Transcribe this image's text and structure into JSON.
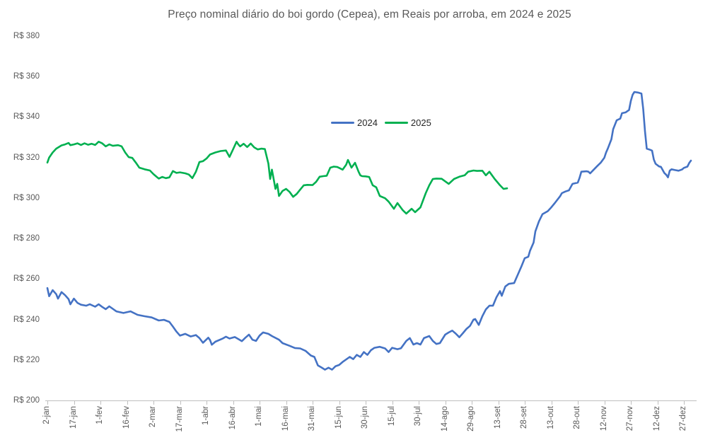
{
  "chart_data": {
    "type": "line",
    "title": "Preço nominal diário do boi gordo (Cepea), em Reais por arroba, em 2024 e 2025",
    "currency_prefix": "R$",
    "y_axis": {
      "min": 200,
      "max": 380,
      "step": 20,
      "labels": [
        "R$ 380",
        "R$ 360",
        "R$ 340",
        "R$ 320",
        "R$ 300",
        "R$ 280",
        "R$ 260",
        "R$ 240",
        "R$ 220",
        "R$ 200"
      ],
      "label_values": [
        380,
        360,
        340,
        320,
        300,
        280,
        260,
        240,
        220,
        200
      ]
    },
    "x_axis": {
      "tick_labels": [
        "2-jan",
        "17-jan",
        "1-fev",
        "16-fev",
        "2-mar",
        "17-mar",
        "1-abr",
        "16-abr",
        "1-mai",
        "16-mai",
        "31-mai",
        "15-jun",
        "30-jun",
        "15-jul",
        "30-jul",
        "14-ago",
        "29-ago",
        "13-set",
        "28-set",
        "13-out",
        "28-out",
        "12-nov",
        "27-nov",
        "12-dez",
        "27-dez"
      ],
      "tick_day_interval": 15,
      "unit": "day of year (from 2-jan)"
    },
    "grid": "off",
    "legend_position": "center-upper",
    "series": [
      {
        "name": "2024",
        "color": "#4472C4",
        "points": [
          [
            0,
            255.5
          ],
          [
            1,
            251.5
          ],
          [
            3,
            254.5
          ],
          [
            5,
            252.5
          ],
          [
            6,
            250.3
          ],
          [
            8,
            253.5
          ],
          [
            10,
            252
          ],
          [
            12,
            250
          ],
          [
            13,
            247.5
          ],
          [
            15,
            250.3
          ],
          [
            17,
            248.2
          ],
          [
            19,
            247.3
          ],
          [
            22,
            246.8
          ],
          [
            24,
            247.5
          ],
          [
            27,
            246.3
          ],
          [
            29,
            247.5
          ],
          [
            31,
            246.2
          ],
          [
            33,
            245.1
          ],
          [
            35,
            246.5
          ],
          [
            39,
            244
          ],
          [
            43,
            243.2
          ],
          [
            47,
            244
          ],
          [
            51,
            242.3
          ],
          [
            55,
            241.6
          ],
          [
            59,
            241
          ],
          [
            63,
            239.5
          ],
          [
            66,
            239.8
          ],
          [
            69,
            238.8
          ],
          [
            71,
            236.5
          ],
          [
            73,
            234
          ],
          [
            75,
            232
          ],
          [
            78,
            232.9
          ],
          [
            81,
            231.6
          ],
          [
            84,
            232.3
          ],
          [
            86,
            230.8
          ],
          [
            88,
            228.5
          ],
          [
            91,
            231
          ],
          [
            92,
            229.8
          ],
          [
            93,
            227.5
          ],
          [
            95,
            229
          ],
          [
            99,
            230.5
          ],
          [
            101,
            231.5
          ],
          [
            103,
            230.6
          ],
          [
            106,
            231.3
          ],
          [
            108,
            230.3
          ],
          [
            110,
            229.3
          ],
          [
            112,
            231
          ],
          [
            114,
            232.5
          ],
          [
            116,
            230
          ],
          [
            118,
            229.4
          ],
          [
            120,
            232
          ],
          [
            122,
            233.6
          ],
          [
            125,
            232.9
          ],
          [
            127,
            231.8
          ],
          [
            131,
            230
          ],
          [
            133,
            228.3
          ],
          [
            137,
            227
          ],
          [
            140,
            225.9
          ],
          [
            143,
            225.7
          ],
          [
            146,
            224.5
          ],
          [
            149,
            222.2
          ],
          [
            151,
            221.5
          ],
          [
            153,
            217.3
          ],
          [
            155,
            216.3
          ],
          [
            157,
            215.2
          ],
          [
            159,
            216.2
          ],
          [
            161,
            215.2
          ],
          [
            163,
            216.9
          ],
          [
            165,
            217.5
          ],
          [
            167,
            219
          ],
          [
            171,
            221.5
          ],
          [
            173,
            220.4
          ],
          [
            175,
            222.5
          ],
          [
            177,
            221.5
          ],
          [
            179,
            223.9
          ],
          [
            181,
            222.5
          ],
          [
            183,
            224.8
          ],
          [
            185,
            226
          ],
          [
            188,
            226.5
          ],
          [
            191,
            225.7
          ],
          [
            193,
            223.9
          ],
          [
            195,
            226
          ],
          [
            198,
            225.3
          ],
          [
            200,
            225.8
          ],
          [
            203,
            229.4
          ],
          [
            205,
            230.8
          ],
          [
            207,
            227.6
          ],
          [
            209,
            228.3
          ],
          [
            211,
            227.6
          ],
          [
            213,
            230.8
          ],
          [
            216,
            231.8
          ],
          [
            218,
            229.4
          ],
          [
            220,
            227.9
          ],
          [
            222,
            228.3
          ],
          [
            225,
            232.5
          ],
          [
            227,
            233.6
          ],
          [
            229,
            234.5
          ],
          [
            231,
            233
          ],
          [
            233,
            231.2
          ],
          [
            235,
            233.2
          ],
          [
            237,
            235.3
          ],
          [
            239,
            236.8
          ],
          [
            241,
            239.9
          ],
          [
            242,
            240.2
          ],
          [
            244,
            237.3
          ],
          [
            246,
            241.6
          ],
          [
            248,
            245
          ],
          [
            250,
            246.8
          ],
          [
            252,
            246.8
          ],
          [
            254,
            251
          ],
          [
            256,
            254
          ],
          [
            257,
            251.7
          ],
          [
            259,
            256.3
          ],
          [
            261,
            257.6
          ],
          [
            264,
            258
          ],
          [
            265,
            260
          ],
          [
            266,
            262
          ],
          [
            268,
            266
          ],
          [
            270,
            270.3
          ],
          [
            272,
            271
          ],
          [
            273,
            274
          ],
          [
            275,
            278
          ],
          [
            276,
            283.5
          ],
          [
            278,
            288.4
          ],
          [
            280,
            292
          ],
          [
            283,
            293.5
          ],
          [
            285,
            295.4
          ],
          [
            287,
            297.5
          ],
          [
            290,
            300.9
          ],
          [
            291,
            302.4
          ],
          [
            293,
            303.2
          ],
          [
            295,
            303.8
          ],
          [
            297,
            307
          ],
          [
            300,
            307.6
          ],
          [
            301,
            310
          ],
          [
            302,
            313
          ],
          [
            305,
            313.2
          ],
          [
            306,
            313
          ],
          [
            307,
            312.2
          ],
          [
            309,
            314
          ],
          [
            311,
            315.8
          ],
          [
            313,
            317.5
          ],
          [
            315,
            319.9
          ],
          [
            316,
            322.5
          ],
          [
            317,
            324.5
          ],
          [
            319,
            329
          ],
          [
            320,
            334
          ],
          [
            322,
            338.4
          ],
          [
            324,
            339.2
          ],
          [
            325,
            341.9
          ],
          [
            327,
            342.3
          ],
          [
            329,
            343.5
          ],
          [
            330,
            348
          ],
          [
            331,
            351
          ],
          [
            332,
            352.4
          ],
          [
            334,
            352.1
          ],
          [
            336,
            351.6
          ],
          [
            337,
            344
          ],
          [
            338,
            333
          ],
          [
            339,
            324.4
          ],
          [
            341,
            323.8
          ],
          [
            342,
            323.4
          ],
          [
            343,
            319
          ],
          [
            344,
            316.9
          ],
          [
            346,
            315.6
          ],
          [
            347,
            315.4
          ],
          [
            349,
            312.3
          ],
          [
            350,
            311.5
          ],
          [
            351,
            310.2
          ],
          [
            352,
            313.5
          ],
          [
            353,
            314.2
          ],
          [
            355,
            313.8
          ],
          [
            357,
            313.5
          ],
          [
            359,
            314.1
          ],
          [
            360,
            314.9
          ],
          [
            362,
            315.5
          ],
          [
            363,
            317.3
          ],
          [
            364,
            318.5
          ]
        ]
      },
      {
        "name": "2025",
        "color": "#00B050",
        "points": [
          [
            0,
            317.5
          ],
          [
            1,
            320
          ],
          [
            3,
            322.5
          ],
          [
            5,
            324.4
          ],
          [
            8,
            326
          ],
          [
            10,
            326.5
          ],
          [
            12,
            327.2
          ],
          [
            13,
            326.1
          ],
          [
            15,
            326.5
          ],
          [
            17,
            327
          ],
          [
            19,
            326.2
          ],
          [
            21,
            327
          ],
          [
            23,
            326.3
          ],
          [
            25,
            326.8
          ],
          [
            27,
            326.2
          ],
          [
            29,
            327.8
          ],
          [
            31,
            327
          ],
          [
            33,
            325.5
          ],
          [
            35,
            326.5
          ],
          [
            37,
            325.8
          ],
          [
            40,
            326.1
          ],
          [
            42,
            325.5
          ],
          [
            44,
            322.5
          ],
          [
            46,
            320.2
          ],
          [
            48,
            319.8
          ],
          [
            50,
            317.5
          ],
          [
            52,
            315
          ],
          [
            55,
            314.2
          ],
          [
            58,
            313.6
          ],
          [
            60,
            311.8
          ],
          [
            62,
            310.3
          ],
          [
            63,
            309.6
          ],
          [
            65,
            310.4
          ],
          [
            67,
            309.8
          ],
          [
            69,
            310.2
          ],
          [
            71,
            313.3
          ],
          [
            73,
            312.4
          ],
          [
            75,
            312.7
          ],
          [
            78,
            312.2
          ],
          [
            80,
            311.6
          ],
          [
            82,
            309.8
          ],
          [
            84,
            313
          ],
          [
            86,
            317.8
          ],
          [
            88,
            318.2
          ],
          [
            90,
            319.5
          ],
          [
            92,
            321.5
          ],
          [
            95,
            322.5
          ],
          [
            98,
            323.2
          ],
          [
            101,
            323.5
          ],
          [
            103,
            320.3
          ],
          [
            105,
            324
          ],
          [
            107,
            327.8
          ],
          [
            108,
            326.5
          ],
          [
            109,
            325.5
          ],
          [
            111,
            326.8
          ],
          [
            113,
            325.2
          ],
          [
            115,
            326.9
          ],
          [
            117,
            325
          ],
          [
            119,
            324
          ],
          [
            121,
            324.4
          ],
          [
            123,
            324.2
          ],
          [
            125,
            317
          ],
          [
            126,
            309.4
          ],
          [
            127,
            314
          ],
          [
            129,
            304.5
          ],
          [
            130,
            307
          ],
          [
            131,
            301
          ],
          [
            133,
            303.5
          ],
          [
            135,
            304.5
          ],
          [
            137,
            303
          ],
          [
            139,
            300.6
          ],
          [
            141,
            302
          ],
          [
            143,
            304.2
          ],
          [
            145,
            306.3
          ],
          [
            147,
            306.5
          ],
          [
            150,
            306.4
          ],
          [
            152,
            308
          ],
          [
            154,
            310.5
          ],
          [
            156,
            310.8
          ],
          [
            158,
            311
          ],
          [
            160,
            315
          ],
          [
            162,
            315.5
          ],
          [
            164,
            315.3
          ],
          [
            167,
            314
          ],
          [
            169,
            316.5
          ],
          [
            170,
            318.8
          ],
          [
            172,
            315
          ],
          [
            174,
            317.4
          ],
          [
            176,
            313
          ],
          [
            177,
            311.2
          ],
          [
            178,
            310.8
          ],
          [
            180,
            310.7
          ],
          [
            182,
            310.4
          ],
          [
            184,
            306.3
          ],
          [
            186,
            305.3
          ],
          [
            188,
            301
          ],
          [
            191,
            299.9
          ],
          [
            193,
            298.2
          ],
          [
            196,
            294.7
          ],
          [
            198,
            297.5
          ],
          [
            201,
            294
          ],
          [
            203,
            292.3
          ],
          [
            206,
            294.7
          ],
          [
            208,
            293
          ],
          [
            211,
            295.4
          ],
          [
            214,
            302.4
          ],
          [
            216,
            306.3
          ],
          [
            218,
            309.4
          ],
          [
            220,
            309.6
          ],
          [
            223,
            309.5
          ],
          [
            227,
            307
          ],
          [
            230,
            309.4
          ],
          [
            233,
            310.5
          ],
          [
            236,
            311.2
          ],
          [
            238,
            313
          ],
          [
            241,
            313.6
          ],
          [
            243,
            313.4
          ],
          [
            246,
            313.5
          ],
          [
            248,
            311.2
          ],
          [
            250,
            313
          ],
          [
            253,
            309.4
          ],
          [
            256,
            306.3
          ],
          [
            258,
            304.5
          ],
          [
            260,
            304.8
          ]
        ]
      }
    ]
  },
  "legend": {
    "items": [
      {
        "label": "2024",
        "color": "#4472C4"
      },
      {
        "label": "2025",
        "color": "#00B050"
      }
    ]
  },
  "colors": {
    "axis": "#BFBFBF",
    "axis_text": "#595959",
    "title_text": "#595959",
    "legend_text": "#262626",
    "background": "#FFFFFF"
  }
}
